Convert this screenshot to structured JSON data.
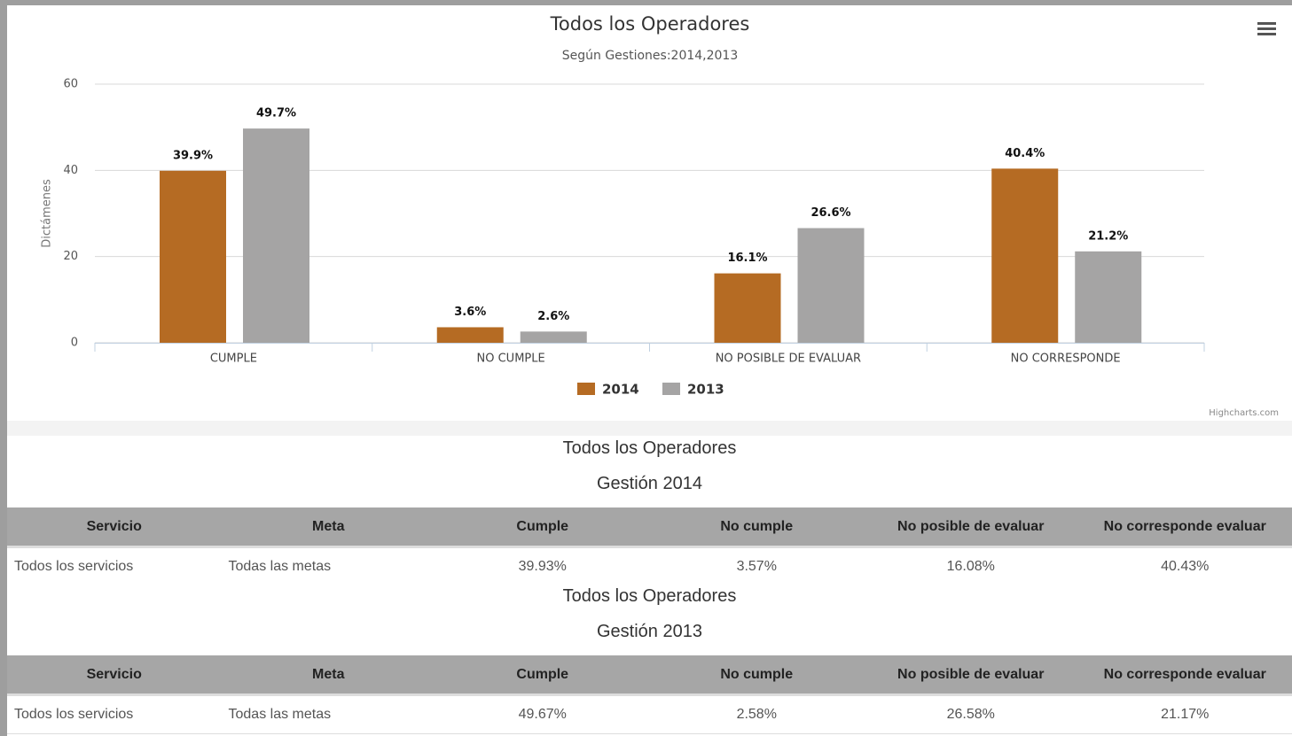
{
  "chart_data": {
    "type": "bar",
    "title": "Todos los Operadores",
    "subtitle": "Según Gestiones:2014,2013",
    "y_label": "Dictámenes",
    "categories": [
      "CUMPLE",
      "NO CUMPLE",
      "NO POSIBLE DE EVALUAR",
      "NO CORRESPONDE"
    ],
    "series": [
      {
        "name": "2014",
        "color": "#b56b23",
        "values": [
          39.9,
          3.6,
          16.1,
          40.4
        ],
        "value_labels": [
          "39.9%",
          "3.6%",
          "16.1%",
          "40.4%"
        ]
      },
      {
        "name": "2013",
        "color": "#a5a4a4",
        "values": [
          49.7,
          2.6,
          26.6,
          21.2
        ],
        "value_labels": [
          "49.7%",
          "2.6%",
          "26.6%",
          "21.2%"
        ]
      }
    ],
    "ylim": [
      0,
      60
    ],
    "yticks": [
      0,
      20,
      40,
      60
    ],
    "grid": true,
    "legend": "bottom",
    "credits": "Highcharts.com"
  },
  "tables": [
    {
      "title": "Todos los Operadores",
      "subtitle": "Gestión 2014",
      "columns": [
        "Servicio",
        "Meta",
        "Cumple",
        "No cumple",
        "No posible de evaluar",
        "No corresponde evaluar"
      ],
      "rows": [
        [
          "Todos los servicios",
          "Todas las metas",
          "39.93%",
          "3.57%",
          "16.08%",
          "40.43%"
        ]
      ]
    },
    {
      "title": "Todos los Operadores",
      "subtitle": "Gestión 2013",
      "columns": [
        "Servicio",
        "Meta",
        "Cumple",
        "No cumple",
        "No posible de evaluar",
        "No corresponde evaluar"
      ],
      "rows": [
        [
          "Todos los servicios",
          "Todas las metas",
          "49.67%",
          "2.58%",
          "26.58%",
          "21.17%"
        ]
      ]
    }
  ]
}
